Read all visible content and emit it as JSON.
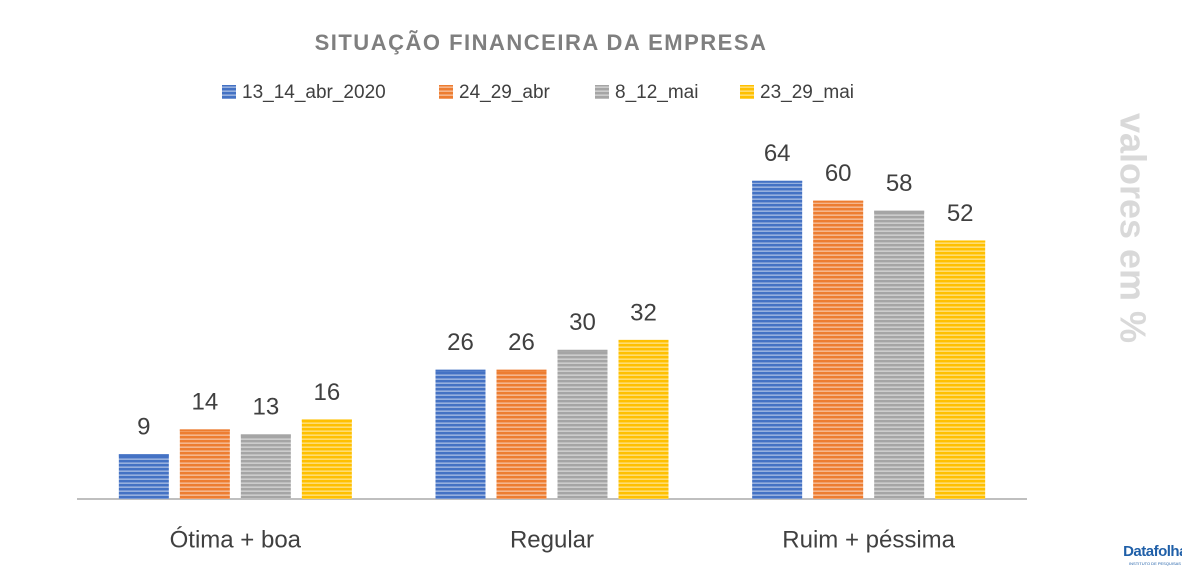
{
  "chart_data": {
    "type": "bar",
    "title": "SITUAÇÃO FINANCEIRA DA EMPRESA",
    "axis_note": "valores em %",
    "categories": [
      "Ótima + boa",
      "Regular",
      "Ruim + péssima"
    ],
    "series": [
      {
        "name": "13_14_abr_2020",
        "color": "#4472c4",
        "values": [
          9,
          26,
          64
        ]
      },
      {
        "name": "24_29_abr",
        "color": "#ed7d31",
        "values": [
          14,
          26,
          60
        ]
      },
      {
        "name": "8_12_mai",
        "color": "#a5a5a5",
        "values": [
          13,
          30,
          58
        ]
      },
      {
        "name": "23_29_mai",
        "color": "#ffc000",
        "values": [
          16,
          32,
          52
        ]
      }
    ],
    "ylim": [
      0,
      70
    ],
    "logo": {
      "name": "Datafolha",
      "tagline": "INSTITUTO DE PESQUISAS"
    }
  }
}
